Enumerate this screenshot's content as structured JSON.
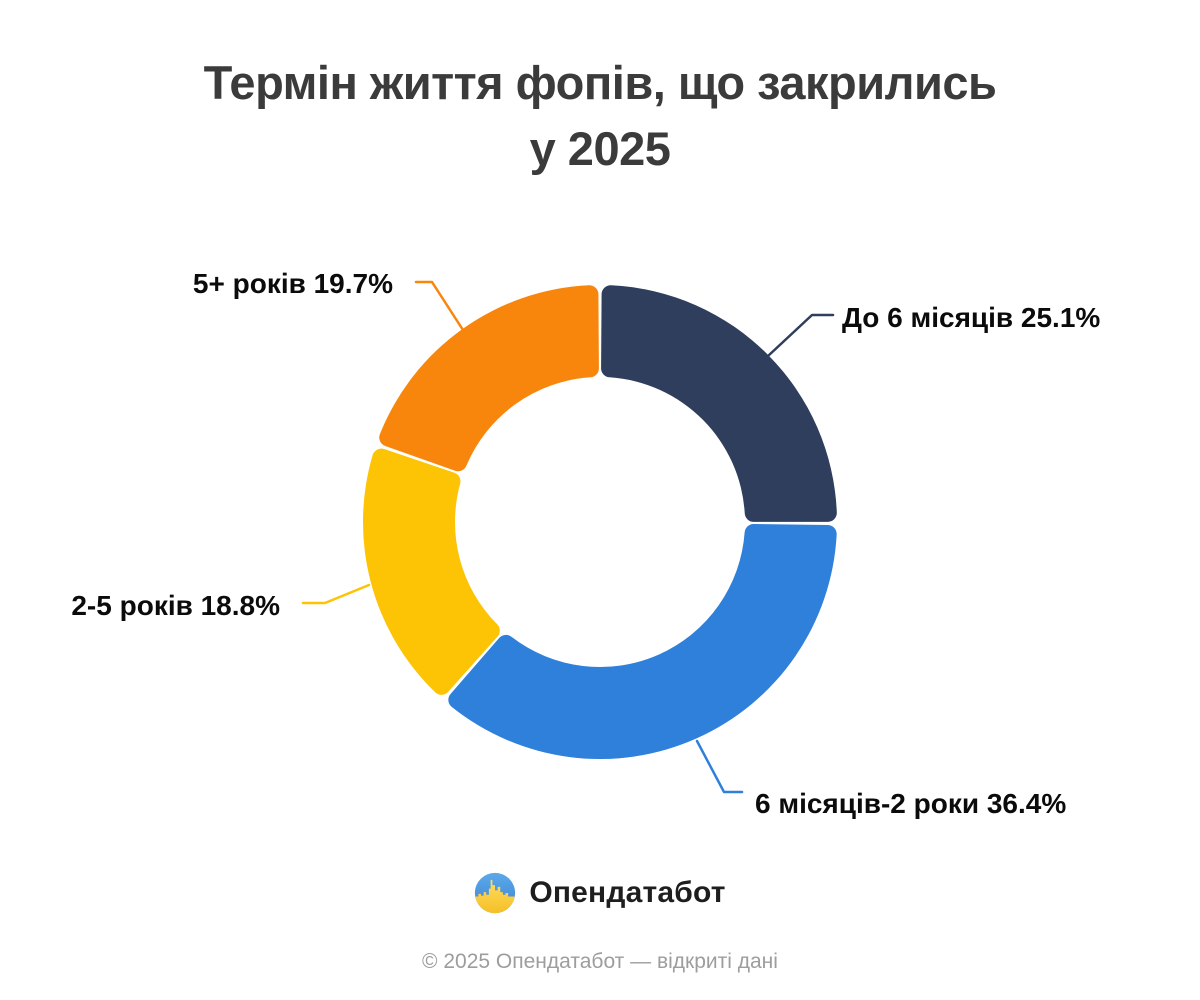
{
  "title": {
    "line1": "Термін життя фопів, що закрились",
    "line2": "у 2025"
  },
  "chart_data": {
    "type": "donut",
    "title": "Термін життя фопів, що закрились у 2025",
    "start_angle_deg": 0,
    "direction": "clockwise",
    "inner_radius_ratio": 0.61,
    "legend_position": "callout-labels",
    "segments": [
      {
        "label": "До 6 місяців",
        "value": 25.1,
        "display": "До 6 місяців 25.1%",
        "color": "#2F3E5C"
      },
      {
        "label": "6 місяців-2 роки",
        "value": 36.4,
        "display": "6 місяців-2 роки 36.4%",
        "color": "#2F80DA"
      },
      {
        "label": "2-5 років",
        "value": 18.8,
        "display": "2-5 років 18.8%",
        "color": "#FDC305"
      },
      {
        "label": "5+ років",
        "value": 19.7,
        "display": "5+ років 19.7%",
        "color": "#F8860D"
      }
    ]
  },
  "logo": {
    "name": "Опендатабот",
    "flag_blue": "#4C9BE8",
    "flag_yellow": "#F9C93C"
  },
  "footer": {
    "copyright": "© 2025 Опендатабот — відкриті дані"
  }
}
